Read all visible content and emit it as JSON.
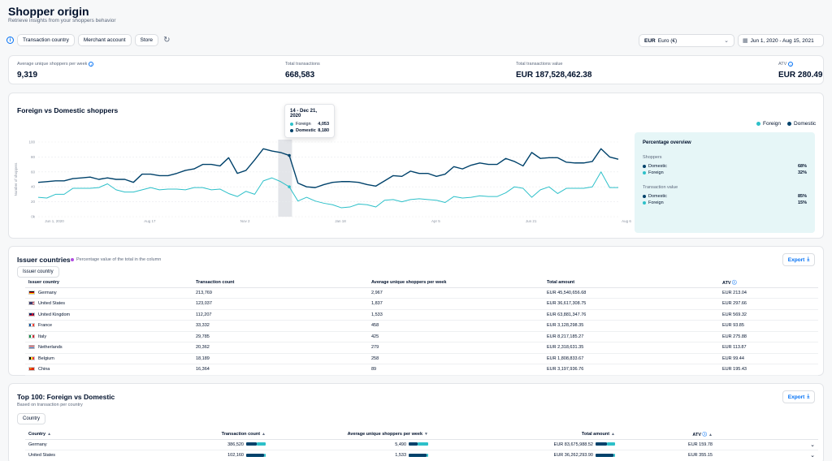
{
  "header": {
    "title": "Shopper origin",
    "subtitle": "Retrieve insights from your shoppers behavior"
  },
  "filters": {
    "info_icon": "info-icon",
    "chips": [
      "Transaction country",
      "Merchant account",
      "Store"
    ],
    "reset_icon": "reset-icon",
    "currency_code": "EUR",
    "currency_label": "Euro (€)",
    "date_range": "Jun 1, 2020 - Aug 15, 2021"
  },
  "kpis": [
    {
      "label": "Average unique shoppers per week",
      "value": "9,319"
    },
    {
      "label": "Total transactions",
      "value": "668,583"
    },
    {
      "label": "Total transactions value",
      "value": "EUR 187,528,462.38"
    },
    {
      "label": "ATV",
      "value": "EUR 280.49"
    }
  ],
  "chart_section": {
    "title": "Foreign vs Domestic shoppers",
    "legend": [
      {
        "name": "Foreign",
        "color": "#2dc0c9"
      },
      {
        "name": "Domestic",
        "color": "#00426b"
      }
    ],
    "tooltip": {
      "title": "14 - Dec 21, 2020",
      "rows": [
        {
          "label": "Foreign",
          "value": "4,053",
          "color": "#2dc0c9"
        },
        {
          "label": "Domestic",
          "value": "8,180",
          "color": "#00426b"
        }
      ]
    },
    "overview": {
      "title": "Percentage overview",
      "shoppers_label": "Shoppers",
      "shoppers": [
        {
          "label": "Domestic",
          "value": "68%",
          "color": "#00426b"
        },
        {
          "label": "Foreign",
          "value": "32%",
          "color": "#2dc0c9"
        }
      ],
      "value_label": "Transaction value",
      "values": [
        {
          "label": "Domestic",
          "value": "85%",
          "color": "#00426b"
        },
        {
          "label": "Foreign",
          "value": "15%",
          "color": "#2dc0c9"
        }
      ]
    }
  },
  "chart_data": {
    "type": "line",
    "title": "Foreign vs Domestic shoppers",
    "ylabel": "Number of shoppers",
    "xlabel": "",
    "ylim": [
      0,
      100
    ],
    "y_ticks": [
      "0k",
      "20",
      "40",
      "60",
      "80",
      "100"
    ],
    "x_ticks": [
      "Jun 1, 2020",
      "Aug 17",
      "Nov 2",
      "Jan 18",
      "Apr 5",
      "Jun 21",
      "Aug 6"
    ],
    "highlight_index": 28,
    "series": [
      {
        "name": "Domestic",
        "color": "#00426b",
        "values": [
          46,
          47,
          48,
          48,
          51,
          52,
          53,
          50,
          52,
          50,
          50,
          46,
          57,
          57,
          55,
          55,
          58,
          62,
          64,
          70,
          70,
          68,
          79,
          58,
          62,
          76,
          91,
          88,
          86,
          82,
          45,
          40,
          39,
          43,
          46,
          47,
          47,
          46,
          43,
          41,
          48,
          55,
          54,
          61,
          58,
          58,
          54,
          57,
          67,
          64,
          69,
          72,
          70,
          70,
          78,
          74,
          68,
          86,
          78,
          79,
          79,
          73,
          72,
          72,
          74,
          91,
          80,
          77
        ]
      },
      {
        "name": "Foreign",
        "color": "#2dc0c9",
        "values": [
          26,
          25,
          30,
          30,
          38,
          38,
          38,
          39,
          44,
          36,
          33,
          33,
          36,
          39,
          36,
          37,
          37,
          36,
          39,
          39,
          36,
          37,
          31,
          27,
          34,
          30,
          48,
          52,
          47,
          40,
          21,
          26,
          21,
          18,
          16,
          12,
          13,
          17,
          16,
          13,
          22,
          23,
          20,
          23,
          24,
          23,
          22,
          19,
          27,
          25,
          26,
          28,
          27,
          27,
          32,
          40,
          38,
          26,
          36,
          40,
          31,
          38,
          38,
          38,
          40,
          60,
          39,
          39
        ]
      }
    ]
  },
  "issuer": {
    "title": "Issuer countries",
    "note": "Percentage value of the total in the column",
    "export_label": "Export",
    "chip": "Issuer country",
    "columns": [
      "Issuer country",
      "Transaction count",
      "Average unique shoppers per week",
      "Total amount",
      "ATV"
    ],
    "rows": [
      {
        "flag": "de",
        "country": "Germany",
        "count": "213,769",
        "avg": "2,967",
        "total": "EUR 45,540,656.68",
        "atv": "EUR 213.04"
      },
      {
        "flag": "us",
        "country": "United States",
        "count": "123,037",
        "avg": "1,837",
        "total": "EUR 36,617,308.75",
        "atv": "EUR 297.66"
      },
      {
        "flag": "gb",
        "country": "United Kingdom",
        "count": "112,207",
        "avg": "1,533",
        "total": "EUR 63,881,347.76",
        "atv": "EUR 569.32"
      },
      {
        "flag": "fr",
        "country": "France",
        "count": "33,332",
        "avg": "458",
        "total": "EUR 3,128,298.35",
        "atv": "EUR 93.85"
      },
      {
        "flag": "it",
        "country": "Italy",
        "count": "29,785",
        "avg": "425",
        "total": "EUR 8,217,185.27",
        "atv": "EUR 275.88"
      },
      {
        "flag": "nl",
        "country": "Netherlands",
        "count": "20,362",
        "avg": "279",
        "total": "EUR 2,318,631.35",
        "atv": "EUR 113.87"
      },
      {
        "flag": "be",
        "country": "Belgium",
        "count": "18,189",
        "avg": "258",
        "total": "EUR 1,808,833.67",
        "atv": "EUR 99.44"
      },
      {
        "flag": "cn",
        "country": "China",
        "count": "16,364",
        "avg": "89",
        "total": "EUR 3,197,936.76",
        "atv": "EUR 195.43"
      }
    ]
  },
  "top100": {
    "title": "Top 100: Foreign vs Domestic",
    "subtitle": "Based on transaction per country",
    "export_label": "Export",
    "chip": "Country",
    "columns": [
      "Country",
      "Transaction count",
      "Average unique shoppers per week",
      "Total amount",
      "ATV"
    ],
    "rows": [
      {
        "country": "Germany",
        "count": "386,520",
        "avg": "5,490",
        "total": "EUR 83,675,988.52",
        "atv": "EUR 159.78",
        "count_dom": 0.55,
        "avg_dom": 0.45,
        "total_dom": 0.6
      },
      {
        "country": "United States",
        "count": "102,160",
        "avg": "1,533",
        "total": "EUR 36,262,293.90",
        "atv": "EUR 355.15",
        "count_dom": 0.9,
        "avg_dom": 0.9,
        "total_dom": 0.9
      }
    ]
  }
}
